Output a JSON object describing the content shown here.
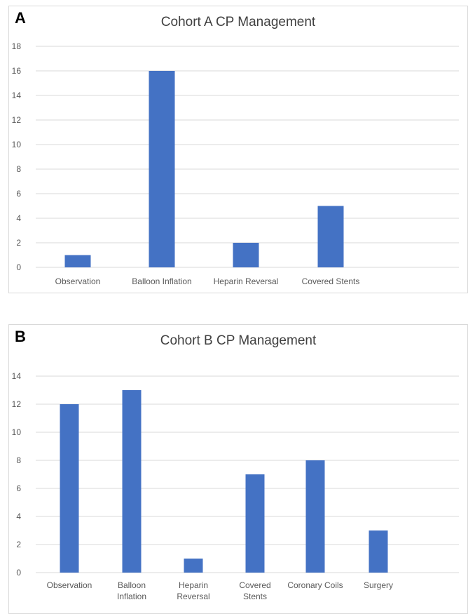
{
  "panels": [
    {
      "letter": "A"
    },
    {
      "letter": "B"
    }
  ],
  "colors": {
    "bar": "#4472c4",
    "grid": "#d9d9d9",
    "axis_text": "#595959",
    "title": "#404040"
  },
  "chart_data": [
    {
      "type": "bar",
      "title": "Cohort A CP Management",
      "categories": [
        [
          "Observation"
        ],
        [
          "Balloon Inflation"
        ],
        [
          "Heparin Reversal"
        ],
        [
          "Covered Stents"
        ]
      ],
      "values": [
        1,
        16,
        2,
        5
      ],
      "ylim": [
        0,
        18
      ],
      "yticks": [
        0,
        2,
        4,
        6,
        8,
        10,
        12,
        14,
        16,
        18
      ],
      "grid": true,
      "xlabel": "",
      "ylabel": ""
    },
    {
      "type": "bar",
      "title": "Cohort B CP Management",
      "categories": [
        [
          "Observation"
        ],
        [
          "Balloon",
          "Inflation"
        ],
        [
          "Heparin",
          "Reversal"
        ],
        [
          "Covered",
          "Stents"
        ],
        [
          "Coronary Coils"
        ],
        [
          "Surgery"
        ]
      ],
      "values": [
        12,
        13,
        1,
        7,
        8,
        3
      ],
      "ylim": [
        0,
        14
      ],
      "yticks": [
        0,
        2,
        4,
        6,
        8,
        10,
        12,
        14
      ],
      "grid": true,
      "xlabel": "",
      "ylabel": ""
    }
  ]
}
